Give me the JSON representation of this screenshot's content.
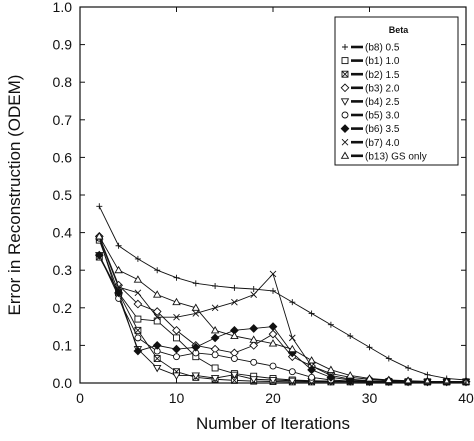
{
  "chart_data": {
    "type": "line",
    "title": "",
    "xlabel": "Number of Iterations",
    "ylabel": "Error in Reconstruction (ODEM)",
    "xlim": [
      0,
      40
    ],
    "ylim": [
      0,
      1.0
    ],
    "xticks": [
      0,
      10,
      20,
      30,
      40
    ],
    "yticks": [
      0.0,
      0.1,
      0.2,
      0.3,
      0.4,
      0.5,
      0.6,
      0.7,
      0.8,
      0.9,
      1.0
    ],
    "ytick_labels": [
      "0.0",
      "0.1",
      "0.2",
      "0.3",
      "0.4",
      "0.5",
      "0.6",
      "0.7",
      "0.8",
      "0.9",
      "1.0"
    ],
    "grid": false,
    "legend": {
      "title": "Beta",
      "placement": "top-right"
    },
    "series": [
      {
        "name": "(b8) 0.5",
        "marker": "plus",
        "x": [
          2,
          4,
          6,
          8,
          10,
          12,
          14,
          16,
          18,
          20,
          22,
          24,
          26,
          28,
          30,
          32,
          34,
          36,
          38,
          40
        ],
        "y": [
          0.47,
          0.365,
          0.33,
          0.3,
          0.28,
          0.265,
          0.258,
          0.253,
          0.25,
          0.245,
          0.215,
          0.185,
          0.155,
          0.125,
          0.095,
          0.065,
          0.04,
          0.022,
          0.012,
          0.008
        ]
      },
      {
        "name": "(b1) 1.0",
        "marker": "square",
        "x": [
          2,
          4,
          6,
          8,
          10,
          12,
          14,
          16,
          18,
          20,
          22,
          24,
          26,
          28,
          30,
          32,
          34,
          36,
          38,
          40
        ],
        "y": [
          0.38,
          0.24,
          0.17,
          0.165,
          0.12,
          0.07,
          0.04,
          0.025,
          0.018,
          0.012,
          0.008,
          0.006,
          0.005,
          0.004,
          0.003,
          0.003,
          0.003,
          0.003,
          0.003,
          0.003
        ]
      },
      {
        "name": "(b2) 1.5",
        "marker": "square-x",
        "x": [
          2,
          4,
          6,
          8,
          10,
          12,
          14,
          16,
          18,
          20,
          22,
          24,
          26,
          28,
          30,
          32,
          34,
          36,
          38,
          40
        ],
        "y": [
          0.335,
          0.24,
          0.14,
          0.065,
          0.03,
          0.015,
          0.01,
          0.007,
          0.005,
          0.004,
          0.003,
          0.003,
          0.003,
          0.003,
          0.003,
          0.003,
          0.003,
          0.003,
          0.003,
          0.003
        ]
      },
      {
        "name": "(b3) 2.0",
        "marker": "diamond",
        "x": [
          2,
          4,
          6,
          8,
          10,
          12,
          14,
          16,
          18,
          20,
          22,
          24,
          26,
          28,
          30,
          32,
          34,
          36,
          38,
          40
        ],
        "y": [
          0.39,
          0.26,
          0.21,
          0.19,
          0.14,
          0.1,
          0.09,
          0.08,
          0.1,
          0.13,
          0.07,
          0.045,
          0.025,
          0.015,
          0.01,
          0.007,
          0.005,
          0.004,
          0.004,
          0.004
        ]
      },
      {
        "name": "(b4) 2.5",
        "marker": "triangle-down",
        "x": [
          2,
          4,
          6,
          8,
          10,
          12,
          14,
          16,
          18,
          20,
          22,
          24,
          26,
          28,
          30,
          32,
          34,
          36,
          38,
          40
        ],
        "y": [
          0.34,
          0.23,
          0.09,
          0.04,
          0.02,
          0.02,
          0.013,
          0.022,
          0.01,
          0.008,
          0.006,
          0.005,
          0.004,
          0.004,
          0.003,
          0.003,
          0.003,
          0.003,
          0.003,
          0.003
        ]
      },
      {
        "name": "(b5) 3.0",
        "marker": "circle",
        "x": [
          2,
          4,
          6,
          8,
          10,
          12,
          14,
          16,
          18,
          20,
          22,
          24,
          26,
          28,
          30,
          32,
          34,
          36,
          38,
          40
        ],
        "y": [
          0.385,
          0.225,
          0.12,
          0.085,
          0.07,
          0.08,
          0.075,
          0.065,
          0.055,
          0.045,
          0.03,
          0.015,
          0.008,
          0.005,
          0.004,
          0.003,
          0.003,
          0.003,
          0.003,
          0.003
        ]
      },
      {
        "name": "(b6) 3.5",
        "marker": "filled-diamond",
        "x": [
          2,
          4,
          6,
          8,
          10,
          12,
          14,
          16,
          18,
          20,
          22,
          24,
          26,
          28,
          30,
          32,
          34,
          36,
          38,
          40
        ],
        "y": [
          0.34,
          0.24,
          0.085,
          0.1,
          0.09,
          0.095,
          0.12,
          0.14,
          0.145,
          0.15,
          0.08,
          0.035,
          0.015,
          0.008,
          0.005,
          0.004,
          0.003,
          0.003,
          0.003,
          0.003
        ]
      },
      {
        "name": "(b7) 4.0",
        "marker": "x",
        "x": [
          2,
          4,
          6,
          8,
          10,
          12,
          14,
          16,
          18,
          20,
          22,
          24,
          26,
          28,
          30,
          32,
          34,
          36,
          38,
          40
        ],
        "y": [
          0.385,
          0.255,
          0.24,
          0.175,
          0.175,
          0.185,
          0.2,
          0.215,
          0.235,
          0.29,
          0.12,
          0.045,
          0.02,
          0.01,
          0.006,
          0.005,
          0.004,
          0.003,
          0.003,
          0.003
        ]
      },
      {
        "name": "(b13) GS only",
        "marker": "triangle-up",
        "x": [
          2,
          4,
          6,
          8,
          10,
          12,
          14,
          16,
          18,
          20,
          22,
          24,
          26,
          28,
          30,
          32,
          34,
          36,
          38,
          40
        ],
        "y": [
          0.39,
          0.3,
          0.275,
          0.235,
          0.215,
          0.2,
          0.14,
          0.125,
          0.115,
          0.105,
          0.09,
          0.06,
          0.035,
          0.02,
          0.012,
          0.008,
          0.006,
          0.004,
          0.004,
          0.004
        ]
      }
    ]
  }
}
